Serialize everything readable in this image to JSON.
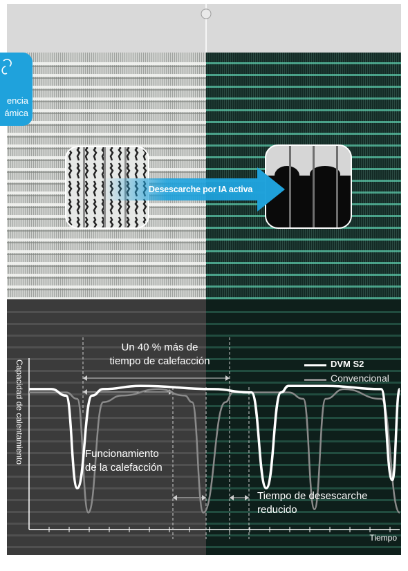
{
  "badge": {
    "line1": "encia",
    "line2": "ámica",
    "icon": "refresh-icon"
  },
  "ai_label": "Desescarche por IA activa",
  "annotations": {
    "heat_gain": "Un 40 % más de\ntiempo de calefacción",
    "operation": "Funcionamiento\nde la calefacción",
    "defrost": "Tiempo de desescarche\nreducido"
  },
  "colors": {
    "accent": "#1fa2dc",
    "dvm_s2": "#ffffff",
    "conventional": "#8a8a8a",
    "frost_panel": "#c9cbc8",
    "clean_panel": "#0f231e",
    "fin_highlight": "#5fd1b0"
  },
  "chart_data": {
    "type": "line",
    "title": "",
    "xlabel": "Tiempo",
    "ylabel": "Capacidad de calentamiento",
    "legend_position": "top-right",
    "ylim": [
      0,
      1
    ],
    "series": [
      {
        "name": "DVM S2",
        "x": [
          0,
          0.06,
          0.1,
          0.13,
          0.17,
          0.2,
          0.3,
          0.5,
          0.59,
          0.6,
          0.64,
          0.68,
          0.7,
          0.8,
          0.95,
          0.98,
          1
        ],
        "y": [
          0.86,
          0.86,
          0.82,
          0.25,
          0.82,
          0.86,
          0.88,
          0.86,
          0.84,
          0.84,
          0.25,
          0.84,
          0.88,
          0.88,
          0.86,
          0.3,
          0.86
        ]
      },
      {
        "name": "Convencional",
        "x": [
          0,
          0.1,
          0.13,
          0.16,
          0.2,
          0.25,
          0.35,
          0.42,
          0.44,
          0.47,
          0.53,
          0.55,
          0.6,
          0.7,
          0.74,
          0.77,
          0.8,
          0.85,
          0.95,
          1
        ],
        "y": [
          0.84,
          0.84,
          0.8,
          0.1,
          0.78,
          0.82,
          0.86,
          0.82,
          0.78,
          0.1,
          0.78,
          0.84,
          0.84,
          0.84,
          0.8,
          0.12,
          0.8,
          0.86,
          0.8,
          0.1
        ]
      }
    ]
  }
}
